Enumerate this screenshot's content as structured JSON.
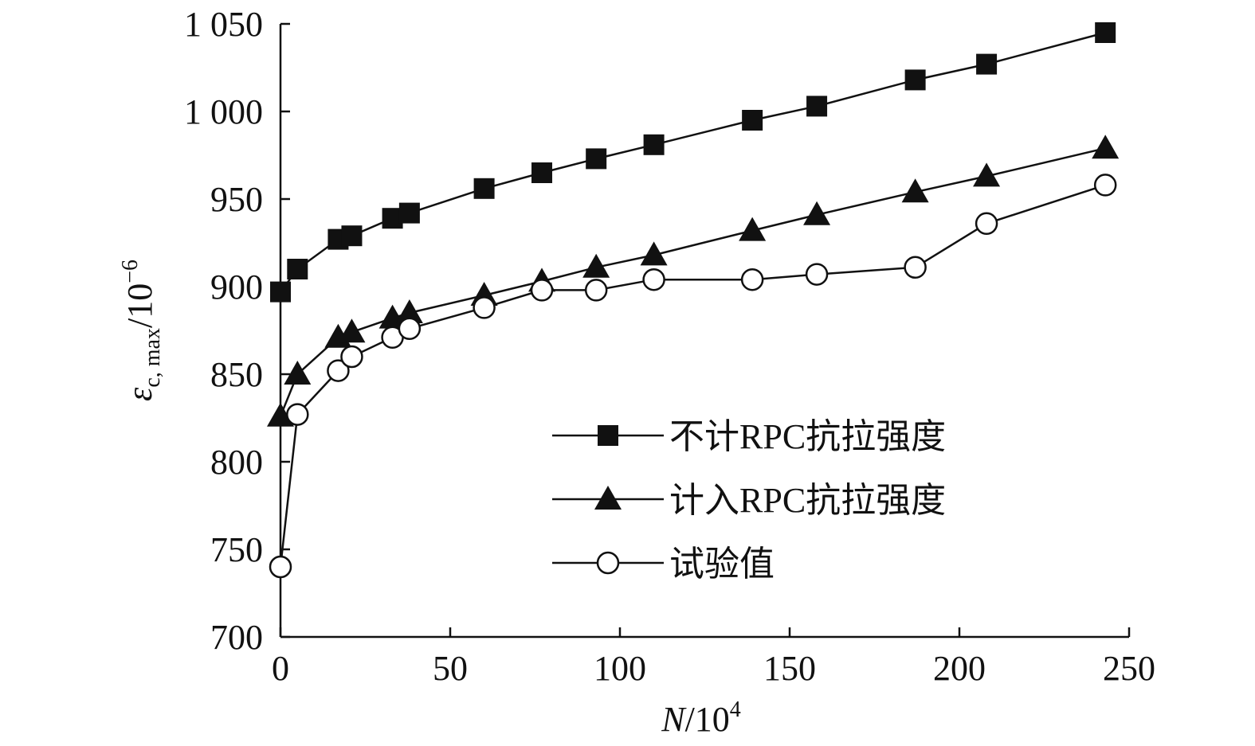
{
  "chart_data": {
    "type": "line",
    "xlabel_var": "N",
    "xlabel_unit": "/10",
    "xlabel_exp": "4",
    "ylabel_var": "ε",
    "ylabel_sub": "c, max",
    "ylabel_unit": "/10",
    "ylabel_exp": "−6",
    "xlim": [
      0,
      250
    ],
    "ylim": [
      700,
      1050
    ],
    "x_ticks": [
      0,
      50,
      100,
      150,
      200,
      250
    ],
    "x_tick_labels": [
      "0",
      "50",
      "100",
      "150",
      "200",
      "250"
    ],
    "y_ticks": [
      700,
      750,
      800,
      850,
      900,
      950,
      1000,
      1050
    ],
    "y_tick_labels": [
      "700",
      "750",
      "800",
      "850",
      "900",
      "950",
      "1 000",
      "1 050"
    ],
    "grid": false,
    "legend_position": "bottom-right",
    "series": [
      {
        "name": "不计RPC抗拉强度",
        "marker": "square-filled",
        "x": [
          0,
          5,
          17,
          21,
          33,
          38,
          60,
          77,
          93,
          110,
          139,
          158,
          187,
          208,
          243
        ],
        "y": [
          897,
          910,
          927,
          929,
          939,
          942,
          956,
          965,
          973,
          981,
          995,
          1003,
          1018,
          1027,
          1045
        ]
      },
      {
        "name": "计入RPC抗拉强度",
        "marker": "triangle-filled",
        "x": [
          0,
          5,
          17,
          21,
          33,
          38,
          60,
          77,
          93,
          110,
          139,
          158,
          187,
          208,
          243
        ],
        "y": [
          826,
          850,
          871,
          874,
          882,
          885,
          895,
          903,
          911,
          918,
          932,
          941,
          954,
          963,
          979
        ]
      },
      {
        "name": "试验值",
        "marker": "circle-open",
        "x": [
          0,
          5,
          17,
          21,
          33,
          38,
          60,
          77,
          93,
          110,
          139,
          158,
          187,
          208,
          243
        ],
        "y": [
          740,
          827,
          852,
          860,
          871,
          876,
          888,
          898,
          898,
          904,
          904,
          907,
          911,
          936,
          958
        ]
      }
    ]
  }
}
